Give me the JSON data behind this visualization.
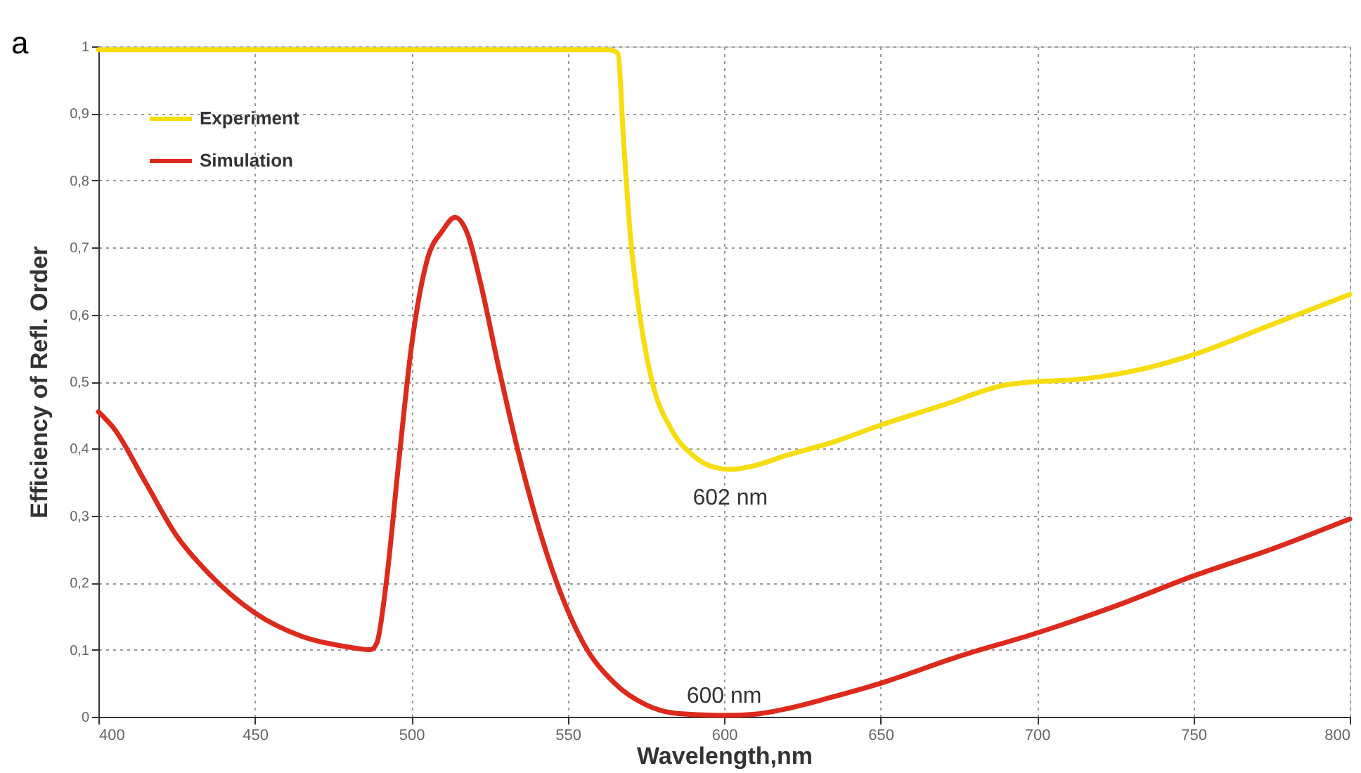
{
  "chart_data": {
    "type": "line",
    "xlabel": "Wavelength,nm",
    "ylabel": "Efficiency of Refl. Order",
    "x": [
      400,
      420,
      440,
      460,
      480,
      500,
      520,
      540,
      555,
      563,
      566,
      568,
      570,
      573,
      577,
      583,
      590,
      597,
      602,
      610,
      620,
      635,
      650,
      670,
      690,
      700,
      710,
      730,
      750,
      775,
      800
    ],
    "series": [
      {
        "name": "Experiment",
        "color": "#f7dc10",
        "values": [
          0.995,
          0.995,
          0.995,
          0.995,
          0.995,
          0.995,
          0.995,
          0.995,
          0.995,
          0.995,
          0.99,
          0.85,
          0.72,
          0.6,
          0.5,
          0.43,
          0.39,
          0.372,
          0.369,
          0.375,
          0.39,
          0.41,
          0.435,
          0.465,
          0.495,
          0.5,
          0.502,
          0.515,
          0.54,
          0.585,
          0.63
        ]
      },
      {
        "name": "Simulation",
        "color": "#dc2a1c",
        "x": [
          400,
          405,
          415,
          425,
          435,
          450,
          465,
          480,
          487,
          489,
          492,
          496,
          500,
          505,
          510,
          514,
          518,
          522,
          528,
          535,
          545,
          555,
          565,
          575,
          585,
          600,
          610,
          620,
          635,
          650,
          675,
          700,
          725,
          750,
          775,
          800
        ],
        "values": [
          0.455,
          0.43,
          0.35,
          0.27,
          0.215,
          0.155,
          0.12,
          0.104,
          0.1,
          0.11,
          0.2,
          0.38,
          0.55,
          0.68,
          0.725,
          0.745,
          0.72,
          0.65,
          0.52,
          0.38,
          0.22,
          0.11,
          0.05,
          0.018,
          0.005,
          0.002,
          0.004,
          0.012,
          0.03,
          0.05,
          0.09,
          0.125,
          0.165,
          0.21,
          0.25,
          0.295
        ]
      }
    ],
    "xlim": [
      400,
      800
    ],
    "xticks": [
      400,
      450,
      500,
      550,
      600,
      650,
      700,
      750,
      800
    ],
    "ylim": [
      0,
      1
    ],
    "yticks": [
      0,
      {
        "value": 0.1,
        "label": "0,1"
      },
      {
        "value": 0.2,
        "label": "0,2"
      },
      {
        "value": 0.3,
        "label": "0,3"
      },
      {
        "value": 0.4,
        "label": "0,4"
      },
      {
        "value": 0.5,
        "label": "0,5"
      },
      {
        "value": 0.6,
        "label": "0,6"
      },
      {
        "value": 0.7,
        "label": "0,7"
      },
      {
        "value": 0.8,
        "label": "0,8"
      },
      {
        "value": 0.9,
        "label": "0,9"
      },
      1
    ],
    "annotations": [
      "a",
      {
        "text": "602 nm",
        "x": 602,
        "y": 0.369
      },
      {
        "text": "600 nm",
        "x": 600,
        "y": 0.002
      }
    ],
    "grid": true,
    "legend": "top left",
    "line_style": "solid",
    "marker": "none"
  }
}
